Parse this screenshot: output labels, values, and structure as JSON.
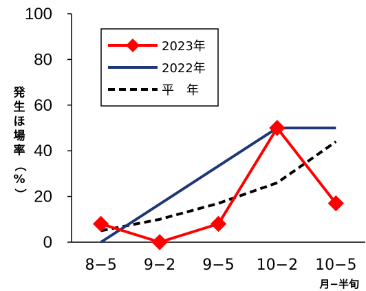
{
  "chart_data": {
    "type": "line",
    "categories": [
      "8−5",
      "9−2",
      "9−5",
      "10−2",
      "10−5"
    ],
    "xlabel": "月−半旬",
    "ylabel": "発生ほ場率（%）",
    "ylim": [
      0,
      100
    ],
    "yticks": [
      0,
      20,
      40,
      60,
      80,
      100
    ],
    "grid": false,
    "legend_position": "top-left",
    "series": [
      {
        "name": "2023年",
        "values": [
          8,
          0,
          8,
          50,
          17
        ],
        "color": "#ff0000",
        "style": "solid-diamond"
      },
      {
        "name": "2022年",
        "values": [
          0,
          null,
          null,
          50,
          50
        ],
        "color": "#1f3777",
        "style": "solid"
      },
      {
        "name": "平　年",
        "values": [
          5,
          10,
          17,
          26,
          44
        ],
        "color": "#000000",
        "style": "dashed"
      }
    ]
  }
}
